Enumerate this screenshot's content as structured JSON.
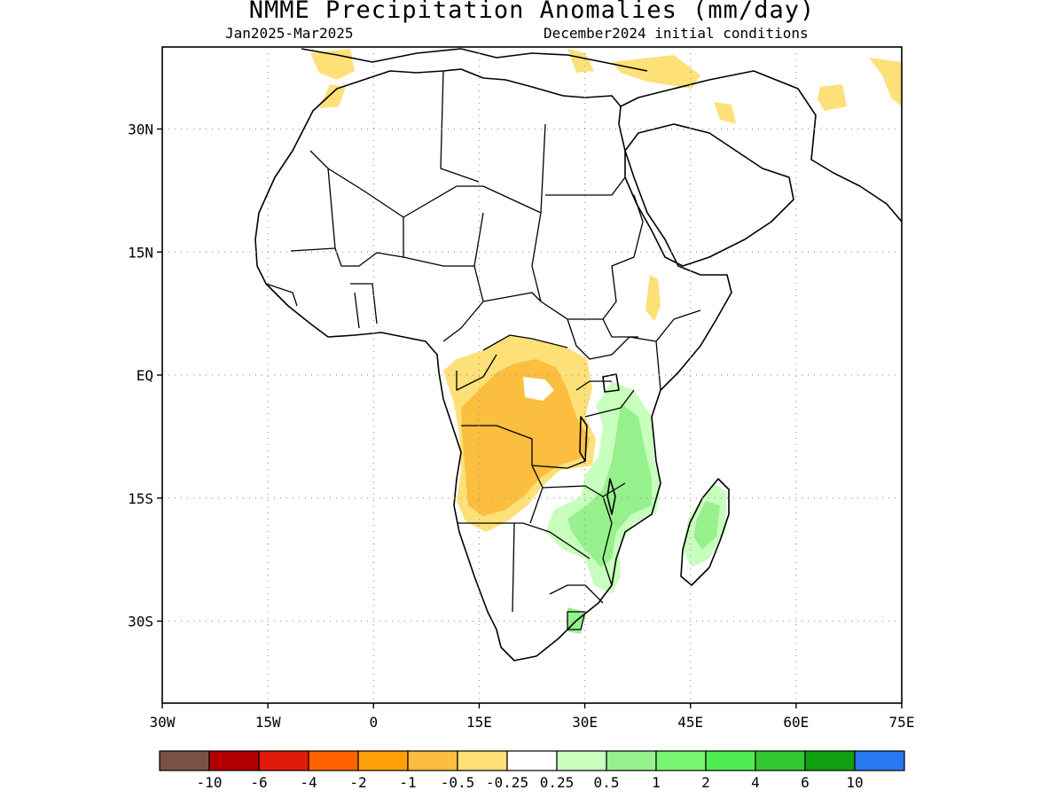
{
  "title": "NMME Precipitation Anomalies (mm/day)",
  "period": "Jan2025-Mar2025",
  "init": "December2024 initial conditions",
  "map": {
    "lat_ticks": [
      {
        "label": "30N",
        "lat": 30
      },
      {
        "label": "15N",
        "lat": 15
      },
      {
        "label": "EQ",
        "lat": 0
      },
      {
        "label": "15S",
        "lat": -15
      },
      {
        "label": "30S",
        "lat": -30
      }
    ],
    "lon_ticks": [
      {
        "label": "30W",
        "lon": -30
      },
      {
        "label": "15W",
        "lon": -15
      },
      {
        "label": "0",
        "lon": 0
      },
      {
        "label": "15E",
        "lon": 15
      },
      {
        "label": "30E",
        "lon": 30
      },
      {
        "label": "45E",
        "lon": 45
      },
      {
        "label": "60E",
        "lon": 60
      },
      {
        "label": "75E",
        "lon": 75
      }
    ],
    "lon_range": [
      -30,
      75
    ],
    "lat_range": [
      -40,
      40
    ],
    "gridlines": "dotted"
  },
  "legend": {
    "colors": [
      "#7a5245",
      "#b40000",
      "#e01b0b",
      "#ff6300",
      "#ffa00a",
      "#fbbe3e",
      "#fde078",
      "#ffffff",
      "#c8ffbe",
      "#96f08c",
      "#78f573",
      "#50eb50",
      "#32c832",
      "#0fa00f",
      "#2878f0"
    ],
    "labels": [
      "-10",
      "-6",
      "-4",
      "-2",
      "-1",
      "-0.5",
      "-0.25",
      "0.25",
      "0.5",
      "1",
      "2",
      "4",
      "6",
      "10"
    ]
  },
  "anomaly_regions": [
    {
      "name": "angola-congo-dry",
      "category": "-1 to -0.5",
      "color": "#fbbe3e"
    },
    {
      "name": "angola-congo-dry-edge",
      "category": "-0.5 to -0.25",
      "color": "#fde078"
    },
    {
      "name": "north-africa-dry",
      "category": "-0.5 to -0.25",
      "color": "#fde078"
    },
    {
      "name": "ethiopia-dry",
      "category": "-0.5 to -0.25",
      "color": "#fde078"
    },
    {
      "name": "iran-dry",
      "category": "-0.5 to -0.25",
      "color": "#fde078"
    },
    {
      "name": "east-africa-wet",
      "category": "0.5 to 1",
      "color": "#96f08c"
    },
    {
      "name": "southeast-africa-wet",
      "category": "0.25 to 0.5",
      "color": "#c8ffbe"
    },
    {
      "name": "madagascar-wet",
      "category": "0.5 to 1",
      "color": "#96f08c"
    }
  ]
}
